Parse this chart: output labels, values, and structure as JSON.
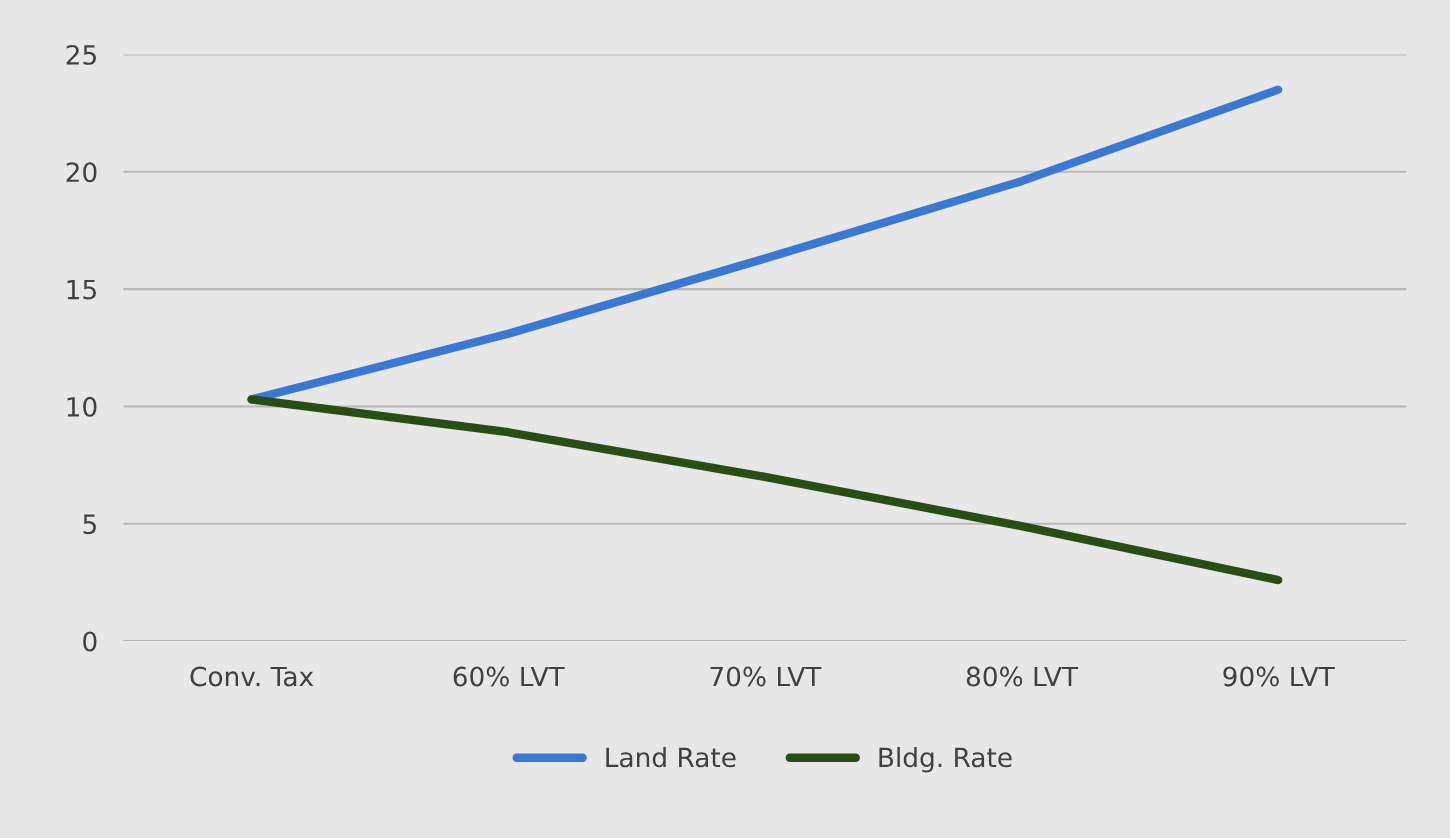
{
  "chart_data": {
    "type": "line",
    "categories": [
      "Conv. Tax",
      "60% LVT",
      "70% LVT",
      "80% LVT",
      "90% LVT"
    ],
    "series": [
      {
        "name": "Land Rate",
        "color": "#3a78d4",
        "values": [
          10.3,
          13.1,
          16.3,
          19.6,
          23.5
        ]
      },
      {
        "name": "Bldg. Rate",
        "color": "#274e13",
        "values": [
          10.3,
          8.9,
          7.0,
          4.9,
          2.6
        ]
      }
    ],
    "ylim": [
      0,
      25
    ],
    "yticks": [
      0,
      5,
      10,
      15,
      20,
      25
    ],
    "grid": "y",
    "legend": "bottom",
    "marker": "none",
    "line_style": "solid"
  }
}
